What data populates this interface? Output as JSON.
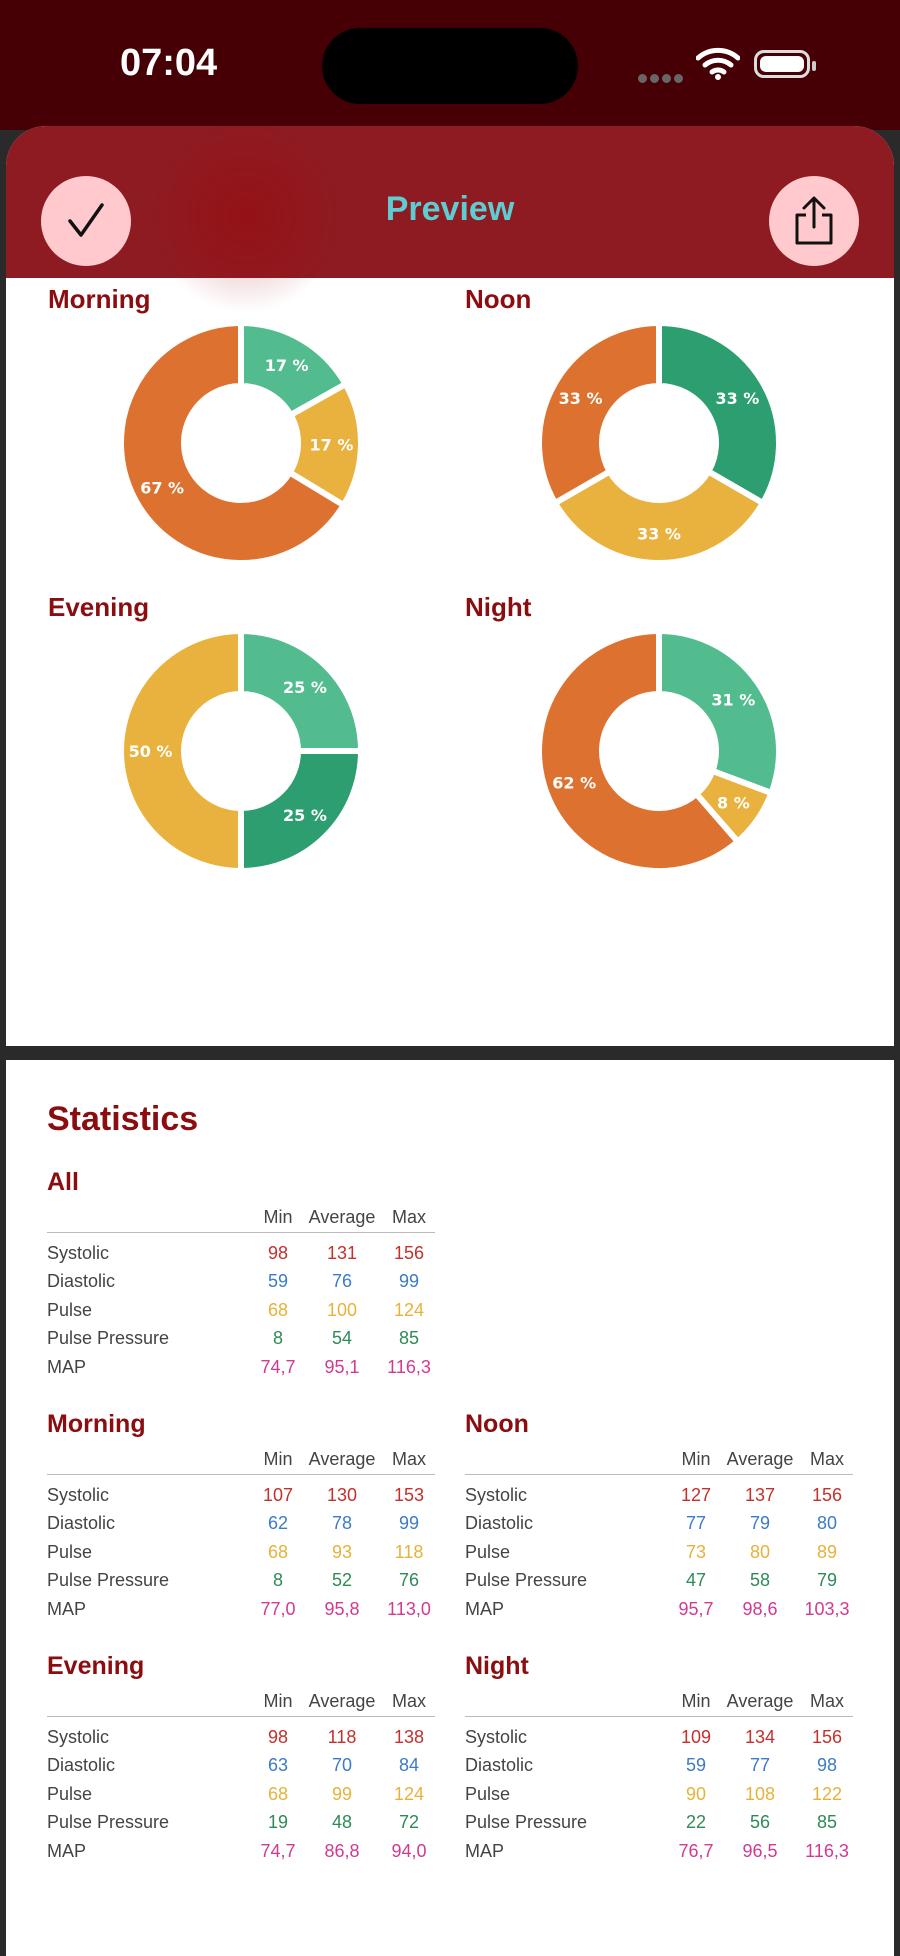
{
  "status": {
    "time": "07:04"
  },
  "nav": {
    "title": "Preview",
    "done_icon": "checkmark-icon",
    "share_icon": "share-icon"
  },
  "colors": {
    "orange": "#dd7230",
    "light_green": "#52bc8f",
    "dark_green": "#2c9e70",
    "yellow": "#e9b23f",
    "title_red": "#8b0d10",
    "nav_red": "#8e1b22",
    "nav_title": "#5ecdd2"
  },
  "charts": [
    {
      "name": "Morning",
      "slices": [
        {
          "label": "17 %",
          "value": 17,
          "color": "#52bc8f"
        },
        {
          "label": "17 %",
          "value": 17,
          "color": "#e9b23f"
        },
        {
          "label": "67 %",
          "value": 67,
          "color": "#dd7230"
        }
      ]
    },
    {
      "name": "Noon",
      "slices": [
        {
          "label": "33 %",
          "value": 33,
          "color": "#2c9e70"
        },
        {
          "label": "33 %",
          "value": 33,
          "color": "#e9b23f"
        },
        {
          "label": "33 %",
          "value": 33,
          "color": "#dd7230"
        }
      ]
    },
    {
      "name": "Evening",
      "slices": [
        {
          "label": "25 %",
          "value": 25,
          "color": "#52bc8f"
        },
        {
          "label": "25 %",
          "value": 25,
          "color": "#2c9e70"
        },
        {
          "label": "50 %",
          "value": 50,
          "color": "#e9b23f"
        }
      ]
    },
    {
      "name": "Night",
      "slices": [
        {
          "label": "31 %",
          "value": 31,
          "color": "#52bc8f"
        },
        {
          "label": "8 %",
          "value": 8,
          "color": "#e9b23f"
        },
        {
          "label": "62 %",
          "value": 62,
          "color": "#dd7230"
        }
      ]
    }
  ],
  "statistics": {
    "title": "Statistics",
    "columns": [
      "Min",
      "Average",
      "Max"
    ],
    "row_labels": [
      "Systolic",
      "Diastolic",
      "Pulse",
      "Pulse Pressure",
      "MAP"
    ],
    "sections": [
      {
        "name": "All",
        "rows": [
          [
            "98",
            "131",
            "156"
          ],
          [
            "59",
            "76",
            "99"
          ],
          [
            "68",
            "100",
            "124"
          ],
          [
            "8",
            "54",
            "85"
          ],
          [
            "74,7",
            "95,1",
            "116,3"
          ]
        ]
      },
      {
        "name": "Morning",
        "rows": [
          [
            "107",
            "130",
            "153"
          ],
          [
            "62",
            "78",
            "99"
          ],
          [
            "68",
            "93",
            "118"
          ],
          [
            "8",
            "52",
            "76"
          ],
          [
            "77,0",
            "95,8",
            "113,0"
          ]
        ]
      },
      {
        "name": "Noon",
        "rows": [
          [
            "127",
            "137",
            "156"
          ],
          [
            "77",
            "79",
            "80"
          ],
          [
            "73",
            "80",
            "89"
          ],
          [
            "47",
            "58",
            "79"
          ],
          [
            "95,7",
            "98,6",
            "103,3"
          ]
        ]
      },
      {
        "name": "Evening",
        "rows": [
          [
            "98",
            "118",
            "138"
          ],
          [
            "63",
            "70",
            "84"
          ],
          [
            "68",
            "99",
            "124"
          ],
          [
            "19",
            "48",
            "72"
          ],
          [
            "74,7",
            "86,8",
            "94,0"
          ]
        ]
      },
      {
        "name": "Night",
        "rows": [
          [
            "109",
            "134",
            "156"
          ],
          [
            "59",
            "77",
            "98"
          ],
          [
            "90",
            "108",
            "122"
          ],
          [
            "22",
            "56",
            "85"
          ],
          [
            "76,7",
            "96,5",
            "116,3"
          ]
        ]
      }
    ]
  }
}
